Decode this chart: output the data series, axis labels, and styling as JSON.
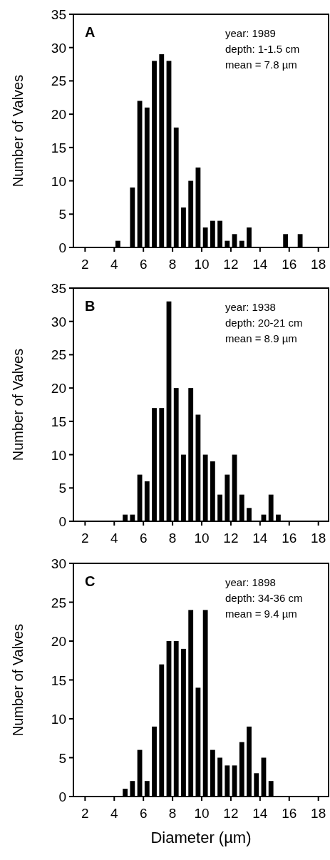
{
  "chart_data": [
    {
      "type": "histogram",
      "ylabel": "Number of Valves",
      "annotations": [
        "A",
        "year: 1989",
        "depth: 1-1.5 cm",
        "mean = 7.8 µm"
      ],
      "color": "#000000",
      "bins": [
        4,
        4.5,
        5,
        5.5,
        6,
        6.5,
        7,
        7.5,
        8,
        8.5,
        9,
        9.5,
        10,
        10.5,
        11,
        11.5,
        12,
        12.5,
        13,
        13.5,
        14,
        14.5,
        15,
        15.5,
        16,
        16.5,
        17
      ],
      "values": [
        1,
        0,
        9,
        22,
        21,
        28,
        29,
        28,
        18,
        6,
        10,
        12,
        3,
        4,
        4,
        1,
        2,
        1,
        3,
        0,
        0,
        0,
        0,
        2,
        0,
        2
      ],
      "xlim": [
        1.2,
        18.7
      ],
      "xticks": [
        2,
        4,
        6,
        8,
        10,
        12,
        14,
        16,
        18
      ],
      "ylim": [
        0,
        35
      ],
      "yticks": [
        0,
        5,
        10,
        15,
        20,
        25,
        30,
        35
      ]
    },
    {
      "type": "histogram",
      "ylabel": "Number of Valves",
      "annotations": [
        "B",
        "year: 1938",
        "depth: 20-21 cm",
        "mean = 8.9 µm"
      ],
      "color": "#000000",
      "bins": [
        4.5,
        5,
        5.5,
        6,
        6.5,
        7,
        7.5,
        8,
        8.5,
        9,
        9.5,
        10,
        10.5,
        11,
        11.5,
        12,
        12.5,
        13,
        13.5,
        14,
        14.5,
        15,
        15.5
      ],
      "values": [
        1,
        1,
        7,
        6,
        17,
        17,
        33,
        20,
        10,
        20,
        16,
        10,
        9,
        4,
        7,
        10,
        4,
        2,
        0,
        1,
        4,
        1
      ],
      "xlim": [
        1.2,
        18.7
      ],
      "xticks": [
        2,
        4,
        6,
        8,
        10,
        12,
        14,
        16,
        18
      ],
      "ylim": [
        0,
        35
      ],
      "yticks": [
        0,
        5,
        10,
        15,
        20,
        25,
        30,
        35
      ]
    },
    {
      "type": "histogram",
      "ylabel": "Number of Valves",
      "xlabel": "Diameter (µm)",
      "annotations": [
        "C",
        "year: 1898",
        "depth: 34-36 cm",
        "mean = 9.4 µm"
      ],
      "color": "#000000",
      "bins": [
        4.5,
        5,
        5.5,
        6,
        6.5,
        7,
        7.5,
        8,
        8.5,
        9,
        9.5,
        10,
        10.5,
        11,
        11.5,
        12,
        12.5,
        13,
        13.5,
        14,
        14.5,
        15
      ],
      "values": [
        1,
        2,
        6,
        2,
        9,
        17,
        20,
        20,
        19,
        24,
        14,
        24,
        6,
        5,
        4,
        4,
        7,
        9,
        3,
        5,
        2
      ],
      "xlim": [
        1.2,
        18.7
      ],
      "xticks": [
        2,
        4,
        6,
        8,
        10,
        12,
        14,
        16,
        18
      ],
      "ylim": [
        0,
        30
      ],
      "yticks": [
        0,
        5,
        10,
        15,
        20,
        25,
        30
      ]
    }
  ]
}
